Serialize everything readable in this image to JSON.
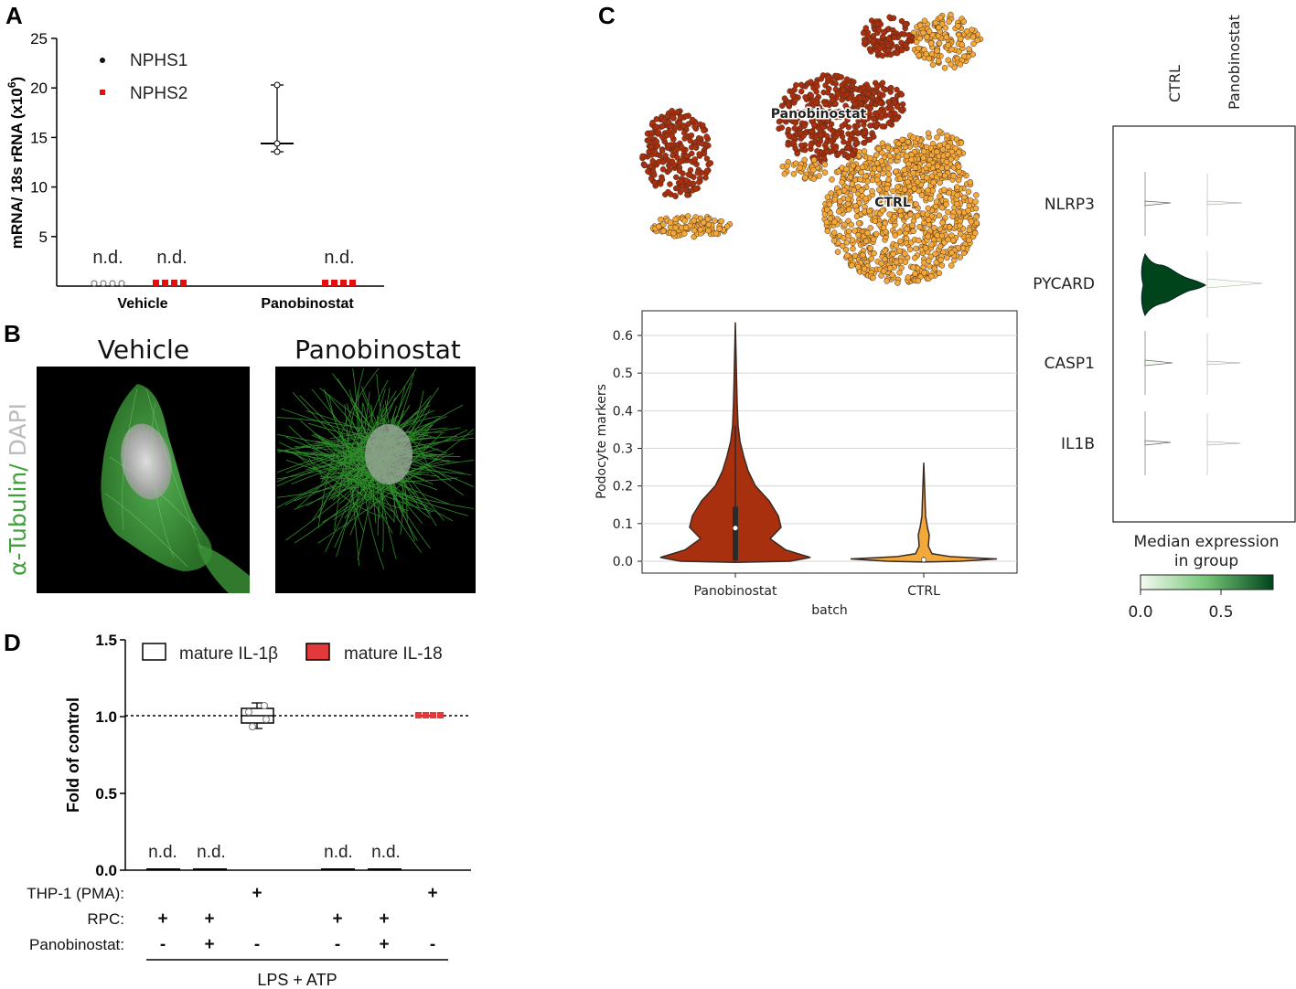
{
  "panel_labels": {
    "a": "A",
    "b": "B",
    "c": "C",
    "d": "D"
  },
  "colors": {
    "panobinostat": "#a8300f",
    "ctrl": "#f2a93a",
    "nphs1": "#111111",
    "nphs2": "#e01010",
    "il18": "#e23a3a",
    "tubulin": "#3fa13a",
    "dapi": "#bbbbbb",
    "cmap_low": "#f4fbf1",
    "cmap_high": "#00441b"
  },
  "chart_data": [
    {
      "id": "A",
      "type": "scatter",
      "title": "",
      "ylabel": "mRNA/ 18s rRNA (x10",
      "ylabel_sup": "6",
      "ylabel_end": ")",
      "ylim": [
        0,
        25
      ],
      "yticks": [
        "5",
        "10",
        "15",
        "20",
        "25"
      ],
      "categories": [
        "Vehicle",
        "Panobinostat"
      ],
      "series": [
        {
          "name": "NPHS1",
          "marker": "circle",
          "values": [
            null,
            14.5
          ],
          "range": [
            13.7,
            20.5
          ]
        },
        {
          "name": "NPHS2",
          "marker": "square",
          "values": [
            null,
            null
          ]
        }
      ],
      "annotations": [
        "n.d.",
        "n.d.",
        "n.d."
      ]
    },
    {
      "id": "B",
      "type": "image",
      "titles": [
        "Vehicle",
        "Panobinostat"
      ],
      "side_label": [
        "α-Tubulin",
        "/ ",
        "DAPI"
      ]
    },
    {
      "id": "C-umap",
      "type": "scatter",
      "clusters": [
        "Panobinostat",
        "CTRL"
      ]
    },
    {
      "id": "C-violin",
      "type": "violin",
      "categories": [
        "Panobinostat",
        "CTRL"
      ],
      "xlabel": "batch",
      "ylabel": "Podocyte markers",
      "ylim": [
        0,
        0.65
      ],
      "yticks": [
        "0.0",
        "0.1",
        "0.2",
        "0.3",
        "0.4",
        "0.5",
        "0.6"
      ],
      "series": [
        {
          "name": "Panobinostat",
          "max": 0.635,
          "median": 0.088,
          "q1": 0.002,
          "q3": 0.145
        },
        {
          "name": "CTRL",
          "max": 0.262,
          "median": 0.004,
          "q1": 0.0,
          "q3": 0.006
        }
      ]
    },
    {
      "id": "C-stacked-violin",
      "type": "violin",
      "groups": [
        "CTRL",
        "Panobinostat"
      ],
      "genes": [
        "NLRP3",
        "PYCARD",
        "CASP1",
        "IL1B"
      ],
      "median_expression": [
        [
          0.0,
          0.0
        ],
        [
          0.85,
          0.0
        ],
        [
          0.0,
          0.0
        ],
        [
          0.0,
          0.0
        ]
      ],
      "colorbar": {
        "title_line1": "Median expression",
        "title_line2": "in group",
        "ticks": [
          "0.0",
          "0.5"
        ],
        "range": [
          0,
          0.85
        ]
      }
    },
    {
      "id": "D",
      "type": "scatter",
      "ylabel": "Fold of control",
      "ylim": [
        0,
        1.5
      ],
      "yticks": [
        "0.0",
        "0.5",
        "1.0",
        "1.5"
      ],
      "reference_line": 1.0,
      "series": [
        {
          "name": "mature IL-1β",
          "values": [
            null,
            null,
            1.0
          ],
          "range": [
            0.93,
            1.08
          ]
        },
        {
          "name": "mature IL-18",
          "values": [
            null,
            null,
            1.0
          ]
        }
      ],
      "conditions": [
        {
          "label": "THP-1 (PMA):",
          "values": [
            "",
            "",
            "+",
            "",
            "",
            "+"
          ]
        },
        {
          "label": "RPC:",
          "values": [
            "+",
            "+",
            "",
            "+",
            "+",
            ""
          ]
        },
        {
          "label": "Panobinostat:",
          "values": [
            "-",
            "+",
            "-",
            "-",
            "+",
            "-"
          ]
        }
      ],
      "group_label": "LPS + ATP",
      "annotations": [
        "n.d.",
        "n.d.",
        "n.d.",
        "n.d."
      ]
    }
  ]
}
